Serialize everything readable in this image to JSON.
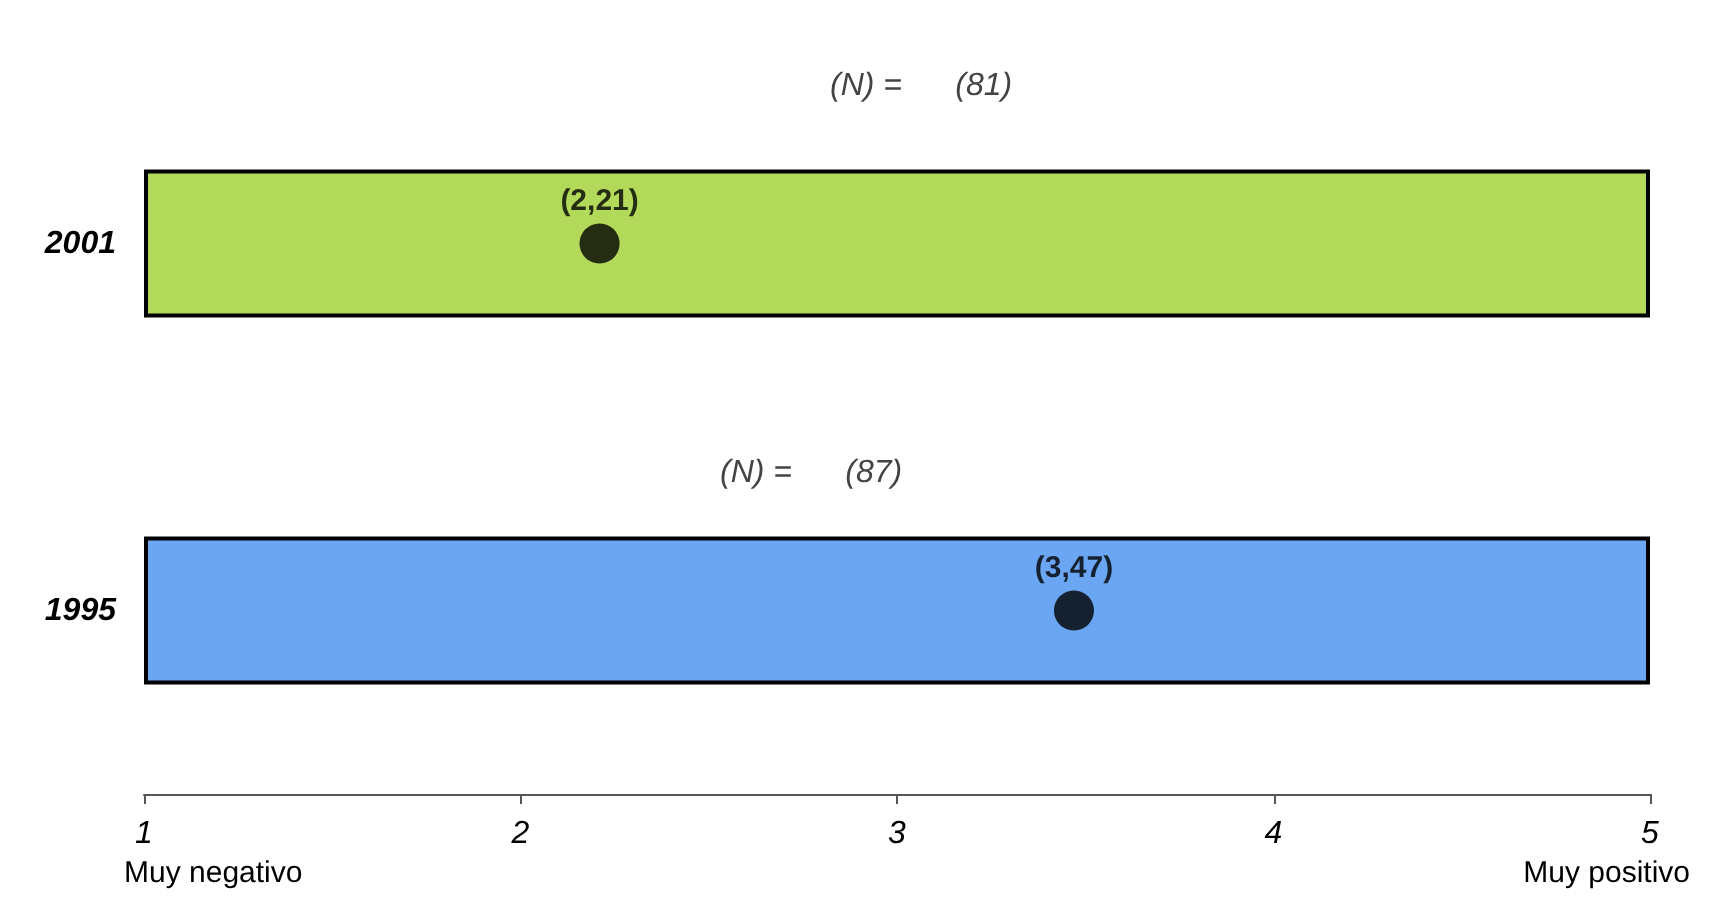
{
  "chart_data": {
    "type": "bar",
    "orientation": "horizontal",
    "categories": [
      "2001",
      "1995"
    ],
    "series": [
      {
        "base": [
          1,
          1
        ],
        "values": [
          4,
          4
        ],
        "colors": [
          "#b3d95a",
          "#6aa6f2"
        ]
      },
      {
        "type": "scatter",
        "values": [
          2.21,
          3.47
        ],
        "color": "#000000",
        "value_labels": [
          "(2,21)",
          "(3,47)"
        ],
        "marker": "circle"
      }
    ],
    "xlim": [
      1,
      5
    ],
    "xticks": [
      1,
      2,
      3,
      4,
      5
    ],
    "grid": false,
    "annotations": [
      "(N) =      (81)",
      "(N) =      (87)",
      "Muy negativo",
      "Muy positivo"
    ]
  }
}
